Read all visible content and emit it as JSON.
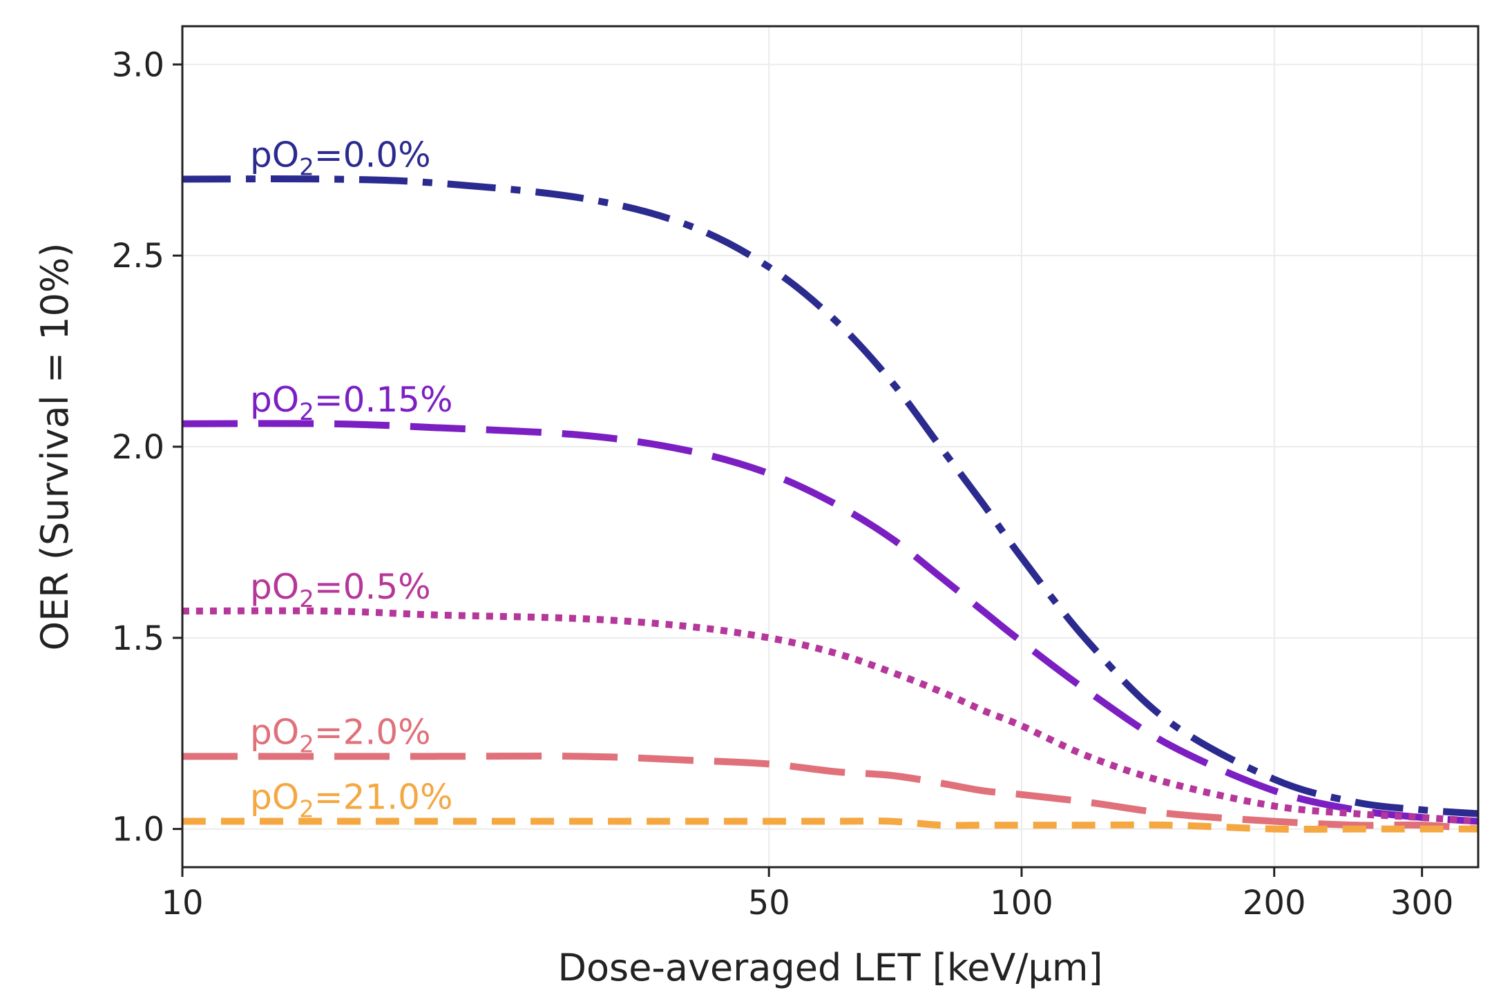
{
  "chart_data": {
    "type": "line",
    "title": "",
    "xlabel": "Dose-averaged LET [keV/µm]",
    "ylabel": "OER (Survival = 10%)",
    "xscale": "log",
    "xlim": [
      10,
      350
    ],
    "ylim": [
      0.9,
      3.1
    ],
    "xticks": [
      10,
      50,
      100,
      200,
      300
    ],
    "xtick_labels": [
      "10",
      "50",
      "100",
      "200",
      "300"
    ],
    "yticks": [
      1.0,
      1.5,
      2.0,
      2.5,
      3.0
    ],
    "ytick_labels": [
      "1.0",
      "1.5",
      "2.0",
      "2.5",
      "3.0"
    ],
    "grid": true,
    "x": [
      10,
      15,
      20,
      30,
      40,
      50,
      60,
      70,
      80,
      90,
      100,
      120,
      150,
      200,
      250,
      300,
      350
    ],
    "series": [
      {
        "name": "pO2=0.0%",
        "label_prefix": "pO",
        "label_sub": "2",
        "label_suffix": "=0.0%",
        "color": "#2b2a8f",
        "dash": "dashdot",
        "values": [
          2.7,
          2.7,
          2.69,
          2.65,
          2.58,
          2.47,
          2.33,
          2.17,
          2.0,
          1.85,
          1.71,
          1.49,
          1.28,
          1.13,
          1.07,
          1.05,
          1.04
        ]
      },
      {
        "name": "pO2=0.15%",
        "label_prefix": "pO",
        "label_sub": "2",
        "label_suffix": "=0.15%",
        "color": "#7b1fc2",
        "dash": "dashed",
        "values": [
          2.06,
          2.06,
          2.05,
          2.03,
          1.99,
          1.93,
          1.85,
          1.76,
          1.66,
          1.57,
          1.49,
          1.36,
          1.22,
          1.1,
          1.05,
          1.03,
          1.02
        ]
      },
      {
        "name": "pO2=0.5%",
        "label_prefix": "pO",
        "label_sub": "2",
        "label_suffix": "=0.5%",
        "color": "#b5379a",
        "dash": "dotted",
        "values": [
          1.57,
          1.57,
          1.56,
          1.55,
          1.53,
          1.5,
          1.46,
          1.41,
          1.36,
          1.31,
          1.27,
          1.19,
          1.12,
          1.06,
          1.04,
          1.03,
          1.02
        ]
      },
      {
        "name": "pO2=2.0%",
        "label_prefix": "pO",
        "label_sub": "2",
        "label_suffix": "=2.0%",
        "color": "#e0707a",
        "dash": "dashed",
        "values": [
          1.19,
          1.19,
          1.19,
          1.19,
          1.18,
          1.17,
          1.15,
          1.14,
          1.12,
          1.1,
          1.09,
          1.07,
          1.04,
          1.02,
          1.01,
          1.01,
          1.0
        ]
      },
      {
        "name": "pO2=21.0%",
        "label_prefix": "pO",
        "label_sub": "2",
        "label_suffix": "=21.0%",
        "color": "#f5a742",
        "dash": "dashed-short",
        "values": [
          1.02,
          1.02,
          1.02,
          1.02,
          1.02,
          1.02,
          1.02,
          1.02,
          1.01,
          1.01,
          1.01,
          1.01,
          1.01,
          1.0,
          1.0,
          1.0,
          1.0
        ]
      }
    ]
  }
}
